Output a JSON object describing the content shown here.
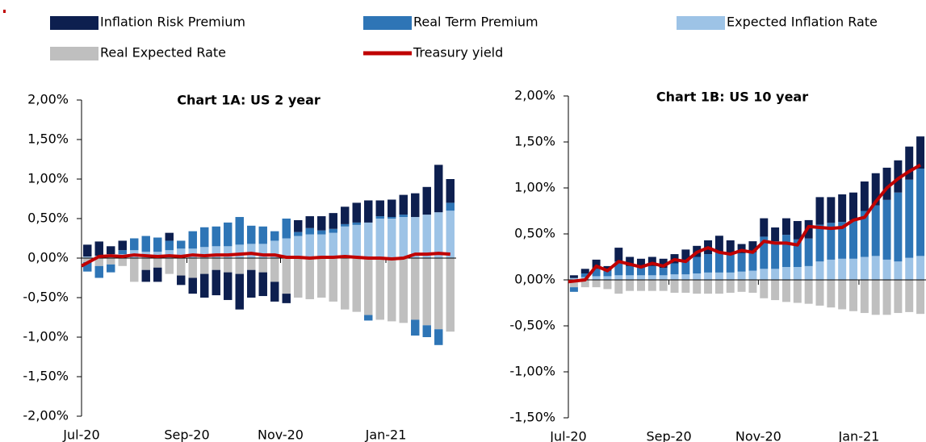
{
  "chart_data": [
    {
      "type": "bar",
      "title": "Chart 1A: US 2 year",
      "stacked": true,
      "categories": [
        "Jul-20",
        null,
        null,
        null,
        null,
        null,
        null,
        null,
        null,
        "Sep-20",
        null,
        null,
        null,
        null,
        null,
        null,
        null,
        "Nov-20",
        null,
        null,
        null,
        null,
        null,
        null,
        null,
        null,
        "Jan-21",
        null,
        null,
        null,
        null,
        null
      ],
      "ylim": [
        -2,
        2
      ],
      "yticks": [
        {
          "value": -2,
          "label": "-2,00%"
        },
        {
          "value": -1.5,
          "label": "-1,50%"
        },
        {
          "value": -1,
          "label": "-1,00%"
        },
        {
          "value": -0.5,
          "label": "-0,50%"
        },
        {
          "value": 0,
          "label": "0,00%"
        },
        {
          "value": 0.5,
          "label": "0,50%"
        },
        {
          "value": 1,
          "label": "1,00%"
        },
        {
          "value": 1.5,
          "label": "1,50%"
        },
        {
          "value": 2,
          "label": "2,00%"
        }
      ],
      "series": [
        {
          "name": "Real Expected Rate",
          "color": "#bfbfbf",
          "values": [
            -0.05,
            -0.1,
            -0.08,
            -0.1,
            -0.3,
            -0.15,
            -0.12,
            -0.2,
            -0.22,
            -0.25,
            -0.2,
            -0.15,
            -0.18,
            -0.2,
            -0.15,
            -0.18,
            -0.3,
            -0.45,
            -0.5,
            -0.52,
            -0.5,
            -0.55,
            -0.65,
            -0.68,
            -0.72,
            -0.78,
            -0.8,
            -0.82,
            -0.78,
            -0.85,
            -0.9,
            -0.93
          ]
        },
        {
          "name": "Expected Inflation Rate",
          "color": "#9dc3e6",
          "values": [
            0.02,
            0.03,
            0.05,
            0.05,
            0.1,
            0.08,
            0.08,
            0.1,
            0.12,
            0.12,
            0.14,
            0.15,
            0.15,
            0.17,
            0.18,
            0.18,
            0.22,
            0.25,
            0.28,
            0.3,
            0.3,
            0.32,
            0.4,
            0.42,
            0.45,
            0.5,
            0.5,
            0.52,
            0.52,
            0.55,
            0.58,
            0.6
          ]
        },
        {
          "name": "Real Term Premium",
          "color": "#2e75b6",
          "values": [
            -0.12,
            -0.15,
            -0.1,
            0.05,
            0.15,
            0.2,
            0.18,
            0.12,
            0.1,
            0.22,
            0.25,
            0.25,
            0.3,
            0.35,
            0.23,
            0.22,
            0.12,
            0.25,
            0.05,
            0.08,
            0.05,
            0.05,
            0.03,
            0.03,
            -0.07,
            0.03,
            0.02,
            0.03,
            -0.2,
            -0.15,
            -0.2,
            0.1
          ]
        },
        {
          "name": "Inflation Risk Premium",
          "color": "#0d1f4f",
          "values": [
            0.15,
            0.18,
            0.1,
            0.12,
            0,
            -0.15,
            -0.18,
            0.1,
            -0.12,
            -0.2,
            -0.3,
            -0.32,
            -0.35,
            -0.45,
            -0.35,
            -0.3,
            -0.25,
            -0.12,
            0.15,
            0.15,
            0.18,
            0.2,
            0.22,
            0.25,
            0.28,
            0.2,
            0.22,
            0.25,
            0.3,
            0.35,
            0.6,
            0.3
          ]
        },
        {
          "name": "Treasury yield",
          "type": "line",
          "color": "#c00000",
          "values": [
            -0.1,
            0.02,
            0.03,
            0.02,
            0.04,
            0.03,
            0.02,
            0.03,
            0.02,
            0.04,
            0.03,
            0.04,
            0.04,
            0.05,
            0.06,
            0.04,
            0.04,
            0.01,
            0.01,
            0.0,
            0.01,
            0.01,
            0.02,
            0.01,
            0.0,
            0.0,
            -0.01,
            0.0,
            0.05,
            0.05,
            0.06,
            0.05
          ]
        }
      ]
    },
    {
      "type": "bar",
      "title": "Chart 1B: US 10 year",
      "stacked": true,
      "categories": [
        "Jul-20",
        null,
        null,
        null,
        null,
        null,
        null,
        null,
        null,
        "Sep-20",
        null,
        null,
        null,
        null,
        null,
        null,
        null,
        "Nov-20",
        null,
        null,
        null,
        null,
        null,
        null,
        null,
        null,
        "Jan-21",
        null,
        null,
        null,
        null,
        null
      ],
      "ylim": [
        -1.5,
        2
      ],
      "yticks": [
        {
          "value": -1.5,
          "label": "-1,50%"
        },
        {
          "value": -1,
          "label": "-1,00%"
        },
        {
          "value": -0.5,
          "label": "-0,50%"
        },
        {
          "value": 0,
          "label": "0,00%"
        },
        {
          "value": 0.5,
          "label": "0,50%"
        },
        {
          "value": 1,
          "label": "1,00%"
        },
        {
          "value": 1.5,
          "label": "1,50%"
        },
        {
          "value": 2,
          "label": "2,00%"
        }
      ],
      "series": [
        {
          "name": "Real Expected Rate",
          "color": "#bfbfbf",
          "values": [
            -0.08,
            -0.08,
            -0.08,
            -0.1,
            -0.15,
            -0.12,
            -0.12,
            -0.12,
            -0.12,
            -0.14,
            -0.14,
            -0.15,
            -0.15,
            -0.15,
            -0.14,
            -0.13,
            -0.14,
            -0.2,
            -0.22,
            -0.24,
            -0.25,
            -0.26,
            -0.28,
            -0.3,
            -0.32,
            -0.34,
            -0.36,
            -0.38,
            -0.38,
            -0.36,
            -0.35,
            -0.37
          ]
        },
        {
          "name": "Expected Inflation Rate",
          "color": "#9dc3e6",
          "values": [
            0.02,
            0.03,
            0.04,
            0.04,
            0.05,
            0.05,
            0.05,
            0.05,
            0.05,
            0.06,
            0.06,
            0.07,
            0.08,
            0.08,
            0.08,
            0.09,
            0.1,
            0.12,
            0.12,
            0.14,
            0.14,
            0.15,
            0.2,
            0.22,
            0.23,
            0.23,
            0.25,
            0.26,
            0.22,
            0.2,
            0.24,
            0.26
          ]
        },
        {
          "name": "Real Term Premium",
          "color": "#2e75b6",
          "values": [
            -0.05,
            0.04,
            0.08,
            0.06,
            0.15,
            0.1,
            0.1,
            0.1,
            0.08,
            0.12,
            0.15,
            0.18,
            0.2,
            0.22,
            0.2,
            0.2,
            0.2,
            0.35,
            0.3,
            0.35,
            0.3,
            0.3,
            0.4,
            0.4,
            0.4,
            0.42,
            0.5,
            0.55,
            0.65,
            0.75,
            0.85,
            0.95
          ]
        },
        {
          "name": "Inflation Risk Premium",
          "color": "#0d1f4f",
          "values": [
            0.03,
            0.05,
            0.1,
            0.05,
            0.15,
            0.1,
            0.08,
            0.1,
            0.1,
            0.1,
            0.12,
            0.12,
            0.15,
            0.18,
            0.15,
            0.1,
            0.12,
            0.2,
            0.15,
            0.18,
            0.2,
            0.2,
            0.3,
            0.28,
            0.3,
            0.3,
            0.32,
            0.35,
            0.35,
            0.35,
            0.36,
            0.35
          ]
        },
        {
          "name": "Treasury yield",
          "type": "line",
          "color": "#c00000",
          "values": [
            -0.02,
            0.0,
            0.15,
            0.1,
            0.2,
            0.17,
            0.14,
            0.18,
            0.15,
            0.22,
            0.2,
            0.3,
            0.35,
            0.3,
            0.28,
            0.32,
            0.3,
            0.42,
            0.4,
            0.4,
            0.38,
            0.58,
            0.57,
            0.56,
            0.57,
            0.65,
            0.68,
            0.85,
            1.0,
            1.1,
            1.18,
            1.25
          ]
        }
      ]
    }
  ]
}
